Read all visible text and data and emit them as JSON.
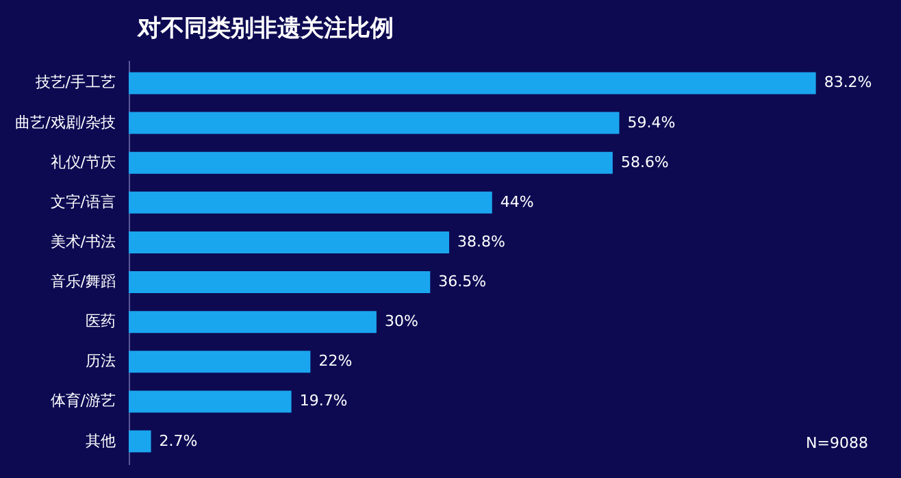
{
  "chart_data": {
    "type": "bar",
    "orientation": "horizontal",
    "title": "对不同类别非遗关注比例",
    "categories": [
      "技艺/手工艺",
      "曲艺/戏剧/杂技",
      "礼仪/节庆",
      "文字/语言",
      "美术/书法",
      "音乐/舞蹈",
      "医药",
      "历法",
      "体育/游艺",
      "其他"
    ],
    "values": [
      83.2,
      59.4,
      58.6,
      44,
      38.8,
      36.5,
      30,
      22,
      19.7,
      2.7
    ],
    "value_labels": [
      "83.2%",
      "59.4%",
      "58.6%",
      "44%",
      "38.8%",
      "36.5%",
      "30%",
      "22%",
      "19.7%",
      "2.7%"
    ],
    "color": "#1aa6ef",
    "tick_labels": "y",
    "grid": false,
    "annotations": [
      "N=9088"
    ]
  }
}
